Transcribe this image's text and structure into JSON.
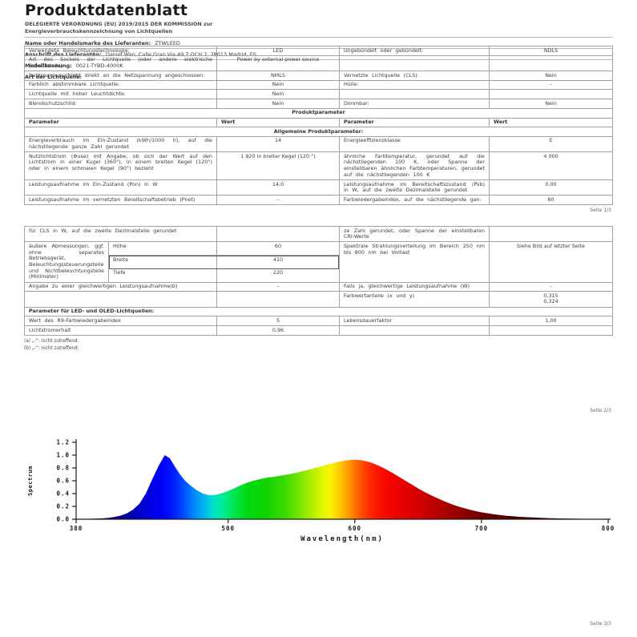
{
  "doc": {
    "title": "Produktdatenblatt",
    "subtitle_line1": "DELEGIERTE VERORDNUNG (EU) 2019/2015 DER KOMMISSION zur",
    "subtitle_line2": "Energieverbrauchskennzeichnung von Lichtquellen",
    "supplier_name_label": "Name oder Handelsmarke des Lieferanten:",
    "supplier_name": "ZTWLEED",
    "supplier_address_label": "Anschrift des Lieferanten:",
    "supplier_address": "Daniel Wan, Calle Gran Via 49,7 OCH 7, 28013 Madrid, ES",
    "model_label": "Modellkennung:",
    "model": "0021-TYBD-4000K",
    "light_source_type_label": "Art der Lichtquelle:"
  },
  "pages": {
    "p1": "Seite 1/3",
    "p2": "Seite 2/3",
    "p3": "Seite 3/3"
  },
  "colors": {
    "table_border": "#a3a3a3",
    "text": "#3c3c3c",
    "axis": "#1a1a1a"
  },
  "table1": {
    "rows": [
      {
        "type": "data",
        "c": [
          "Verwendete Beleuchtungstechnologie:",
          "LED",
          "Ungebündelt oder gebündelt:",
          "NDLS"
        ]
      },
      {
        "type": "data",
        "c": [
          "Art des Sockels der Lichtquelle (oder andere elektrische Schnittstelle)",
          "Power by external power source",
          "",
          ""
        ]
      },
      {
        "type": "data",
        "c": [
          "Netzspannung/Nicht direkt an die Netzspannung angeschlossen:",
          "NMLS",
          "Vernetzte Lichtquelle (CLS):",
          "Nein"
        ]
      },
      {
        "type": "data",
        "c": [
          "Farblich abstimmbare Lichtquelle:",
          "Nein",
          "Hülle:",
          "–"
        ]
      },
      {
        "type": "data",
        "c": [
          "Lichtquelle mit hoher Leuchtdichte:",
          "Nein",
          "",
          ""
        ]
      },
      {
        "type": "data",
        "c": [
          "Blendschutzschild:",
          "Nein",
          "Dimmbar:",
          "Nein"
        ]
      },
      {
        "type": "span",
        "align": "center",
        "text": "Produktparameter"
      },
      {
        "type": "head",
        "c": [
          "Parameter",
          "Wert",
          "Parameter",
          "Wert"
        ]
      },
      {
        "type": "span",
        "align": "center",
        "text": "Allgemeine Produktparameter:"
      },
      {
        "type": "data",
        "c": [
          "Energieverbrauch im Ein-Zustand (kWh/1000 h), auf die nächstliegende ganze Zahl gerundet",
          "14",
          "Energieeffizienzklasse",
          "E"
        ]
      },
      {
        "type": "data",
        "c": [
          "Nutzlichtstrom (Φuse) mit Angabe, ob sich der Wert auf den Lichtstrom in einer Kugel (360°), in einem breiten Kegel (120°) oder in einem schmalen Kegel (90°) bezieht",
          "1 920 in breiter Kegel (120 °)",
          "ähnliche Farbtemperatur, gerundet auf die nächstliegenden 100 K, oder Spanne der einstellbaren ähnlichen Farbtemperaturen, gerundet auf die nächstliegenden 100 K",
          "4 000"
        ]
      },
      {
        "type": "data",
        "c": [
          "Leistungsaufnahme im Ein-Zustand (Pon) in W",
          "14,0",
          "Leistungsaufnahme im Bereitschaftszustand (Psb) in W, auf die zweite Dezimalstelle gerundet",
          "0,00"
        ]
      },
      {
        "type": "data",
        "c": [
          "Leistungsaufnahme im vernetzten Bereitschaftsbetrieb (Pnet)",
          "–",
          "Farbwiedergabeindex, auf die nächstliegende gan-",
          "80"
        ]
      }
    ]
  },
  "table2": {
    "rows": [
      {
        "type": "data",
        "c": [
          "für CLS in W, auf die zweite Dezimalstelle gerundet",
          "",
          "ze Zahl gerundet, oder Spanne der einstellbaren CRI-Werte",
          ""
        ]
      },
      {
        "type": "dims",
        "c1": "äußere Abmessungen, ggf. ohne separates Betriebsgerät, Beleuchtungssteuerungsteile und Nichtbeleuchtungsteile (Millimeter)",
        "dims": [
          {
            "label": "Höhe",
            "value": "60",
            "highlight": false
          },
          {
            "label": "Breite",
            "value": "410",
            "highlight": true
          },
          {
            "label": "Tiefe",
            "value": "220",
            "highlight": false
          }
        ],
        "c3": "Spektrale Strahlungsverteilung im Bereich 250 nm bis 800 nm bei Volllast",
        "c4": "Siehe Bild auf letzter Seite"
      },
      {
        "type": "data",
        "c": [
          "Angabe zu einer gleichwertigen Leistungsaufnahme(b)",
          "–",
          "Falls ja, gleichwertige Leistungsaufnahme (W)",
          "–"
        ]
      },
      {
        "type": "data",
        "c": [
          "",
          "",
          "Farbwertanteile (x und y)",
          "0,315\n0,324"
        ]
      },
      {
        "type": "span",
        "align": "left",
        "text": "Parameter für LED- und OLED-Lichtquellen:"
      },
      {
        "type": "data",
        "c": [
          "Wert des R9-Farbwiedergabeindex",
          "5",
          "Lebensdauerfaktor",
          "1,00"
        ]
      },
      {
        "type": "data",
        "c": [
          "Lichtstromerhalt",
          "0,96",
          "",
          ""
        ]
      }
    ]
  },
  "footnotes": [
    "(a) „-“: nicht zutreffend;",
    "(b) „-“: nicht zutreffend;"
  ],
  "chart_data": {
    "type": "area",
    "title": "",
    "xlabel": "Wavelength(nm)",
    "ylabel": "Spectrum",
    "xlim": [
      380,
      800
    ],
    "ylim": [
      0,
      1.2
    ],
    "x_ticks": [
      380,
      500,
      600,
      700,
      800
    ],
    "y_ticks": [
      0.0,
      0.2,
      0.4,
      0.6,
      0.8,
      1.0,
      1.2
    ],
    "grid": false,
    "legend": "none",
    "series": [
      {
        "name": "spectral power distribution (relative)",
        "points": [
          [
            380,
            0.004
          ],
          [
            390,
            0.006
          ],
          [
            400,
            0.012
          ],
          [
            405,
            0.02
          ],
          [
            410,
            0.035
          ],
          [
            415,
            0.055
          ],
          [
            420,
            0.09
          ],
          [
            425,
            0.15
          ],
          [
            430,
            0.24
          ],
          [
            435,
            0.4
          ],
          [
            440,
            0.62
          ],
          [
            445,
            0.83
          ],
          [
            450,
            1.0
          ],
          [
            454,
            0.95
          ],
          [
            458,
            0.82
          ],
          [
            462,
            0.7
          ],
          [
            466,
            0.6
          ],
          [
            470,
            0.53
          ],
          [
            475,
            0.455
          ],
          [
            480,
            0.4
          ],
          [
            485,
            0.375
          ],
          [
            490,
            0.38
          ],
          [
            495,
            0.405
          ],
          [
            500,
            0.44
          ],
          [
            505,
            0.485
          ],
          [
            510,
            0.53
          ],
          [
            515,
            0.57
          ],
          [
            520,
            0.6
          ],
          [
            525,
            0.625
          ],
          [
            530,
            0.645
          ],
          [
            535,
            0.66
          ],
          [
            540,
            0.675
          ],
          [
            545,
            0.69
          ],
          [
            550,
            0.71
          ],
          [
            555,
            0.73
          ],
          [
            560,
            0.755
          ],
          [
            565,
            0.78
          ],
          [
            570,
            0.805
          ],
          [
            575,
            0.835
          ],
          [
            580,
            0.86
          ],
          [
            585,
            0.885
          ],
          [
            590,
            0.908
          ],
          [
            595,
            0.922
          ],
          [
            600,
            0.928
          ],
          [
            605,
            0.92
          ],
          [
            610,
            0.9
          ],
          [
            615,
            0.868
          ],
          [
            620,
            0.825
          ],
          [
            625,
            0.775
          ],
          [
            630,
            0.72
          ],
          [
            635,
            0.66
          ],
          [
            640,
            0.6
          ],
          [
            645,
            0.54
          ],
          [
            650,
            0.48
          ],
          [
            655,
            0.425
          ],
          [
            660,
            0.375
          ],
          [
            665,
            0.33
          ],
          [
            670,
            0.285
          ],
          [
            675,
            0.245
          ],
          [
            680,
            0.21
          ],
          [
            685,
            0.18
          ],
          [
            690,
            0.152
          ],
          [
            695,
            0.128
          ],
          [
            700,
            0.108
          ],
          [
            710,
            0.076
          ],
          [
            720,
            0.054
          ],
          [
            730,
            0.038
          ],
          [
            740,
            0.027
          ],
          [
            750,
            0.019
          ],
          [
            760,
            0.013
          ],
          [
            770,
            0.009
          ],
          [
            780,
            0.006
          ],
          [
            790,
            0.004
          ],
          [
            800,
            0.003
          ]
        ]
      }
    ],
    "spectrum_colors": [
      [
        380,
        "#000050"
      ],
      [
        415,
        "#000090"
      ],
      [
        435,
        "#0000d8"
      ],
      [
        448,
        "#0000fa"
      ],
      [
        456,
        "#0018ff"
      ],
      [
        464,
        "#0048ff"
      ],
      [
        472,
        "#0080ff"
      ],
      [
        480,
        "#00b0f0"
      ],
      [
        488,
        "#00e0cc"
      ],
      [
        496,
        "#00ec94"
      ],
      [
        505,
        "#00e44c"
      ],
      [
        515,
        "#00da14"
      ],
      [
        530,
        "#12d400"
      ],
      [
        545,
        "#3cda00"
      ],
      [
        557,
        "#7ce600"
      ],
      [
        567,
        "#b4f000"
      ],
      [
        575,
        "#e4f800"
      ],
      [
        581,
        "#fcf000"
      ],
      [
        587,
        "#ffd000"
      ],
      [
        593,
        "#ffa800"
      ],
      [
        599,
        "#ff7c00"
      ],
      [
        606,
        "#ff4c00"
      ],
      [
        614,
        "#ff2000"
      ],
      [
        624,
        "#f80800"
      ],
      [
        636,
        "#ea0000"
      ],
      [
        650,
        "#d40000"
      ],
      [
        665,
        "#b80000"
      ],
      [
        682,
        "#940000"
      ],
      [
        700,
        "#700000"
      ],
      [
        725,
        "#4c0000"
      ],
      [
        755,
        "#2c0000"
      ],
      [
        800,
        "#0e0000"
      ]
    ]
  }
}
